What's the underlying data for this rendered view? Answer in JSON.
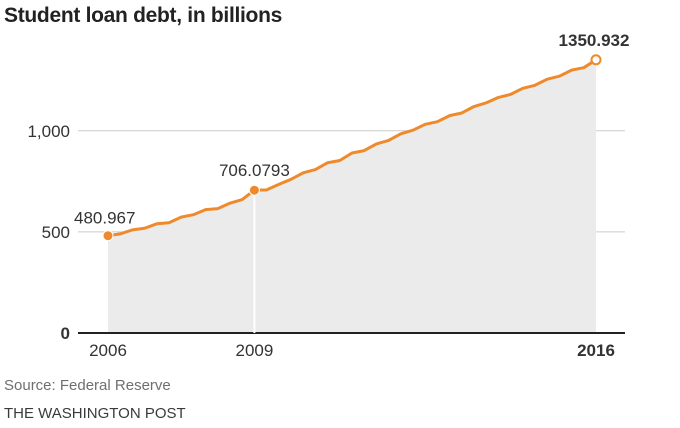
{
  "title": "Student loan debt, in billions",
  "source": "Source: Federal Reserve",
  "credit": "THE WASHINGTON POST",
  "colors": {
    "line": "#ee8a2c",
    "area": "#ebebeb",
    "grid": "#cccccc",
    "axis": "#222222",
    "text": "#333333"
  },
  "chart_data": {
    "type": "area",
    "title": "Student loan debt, in billions",
    "xlabel": "",
    "ylabel": "",
    "xlim": [
      2006,
      2016.2
    ],
    "ylim": [
      0,
      1350
    ],
    "y_ticks": [
      {
        "value": 0,
        "label": "0",
        "bold": true
      },
      {
        "value": 500,
        "label": "500",
        "bold": false
      },
      {
        "value": 1000,
        "label": "1,000",
        "bold": false
      }
    ],
    "x_ticks": [
      {
        "value": 2006,
        "label": "2006",
        "bold": false
      },
      {
        "value": 2009,
        "label": "2009",
        "bold": false
      },
      {
        "value": 2016,
        "label": "2016",
        "bold": true
      }
    ],
    "grid": true,
    "series": [
      {
        "x": [
          2006.0,
          2006.25,
          2006.5,
          2006.75,
          2007.0,
          2007.25,
          2007.5,
          2007.75,
          2008.0,
          2008.25,
          2008.5,
          2008.75,
          2009.0,
          2009.25,
          2009.5,
          2009.75,
          2010.0,
          2010.25,
          2010.5,
          2010.75,
          2011.0,
          2011.25,
          2011.5,
          2011.75,
          2012.0,
          2012.25,
          2012.5,
          2012.75,
          2013.0,
          2013.25,
          2013.5,
          2013.75,
          2014.0,
          2014.25,
          2014.5,
          2014.75,
          2015.0,
          2015.25,
          2015.5,
          2015.75,
          2016.0
        ],
        "y": [
          480.967,
          490,
          510,
          518,
          540,
          545,
          573,
          585,
          610,
          615,
          642,
          660,
          706.0793,
          708,
          735,
          760,
          792,
          808,
          842,
          853,
          890,
          902,
          935,
          952,
          985,
          1003,
          1032,
          1045,
          1075,
          1088,
          1120,
          1138,
          1165,
          1180,
          1210,
          1225,
          1255,
          1270,
          1300,
          1312,
          1350.932
        ]
      }
    ],
    "annotations": [
      {
        "x": 2006,
        "y": 480.967,
        "label": "480.967",
        "marker": "filled",
        "drop_line": false
      },
      {
        "x": 2009,
        "y": 706.0793,
        "label": "706.0793",
        "marker": "filled",
        "drop_line": true
      },
      {
        "x": 2016,
        "y": 1350.932,
        "label": "1350.932",
        "marker": "hollow",
        "drop_line": false
      }
    ]
  }
}
